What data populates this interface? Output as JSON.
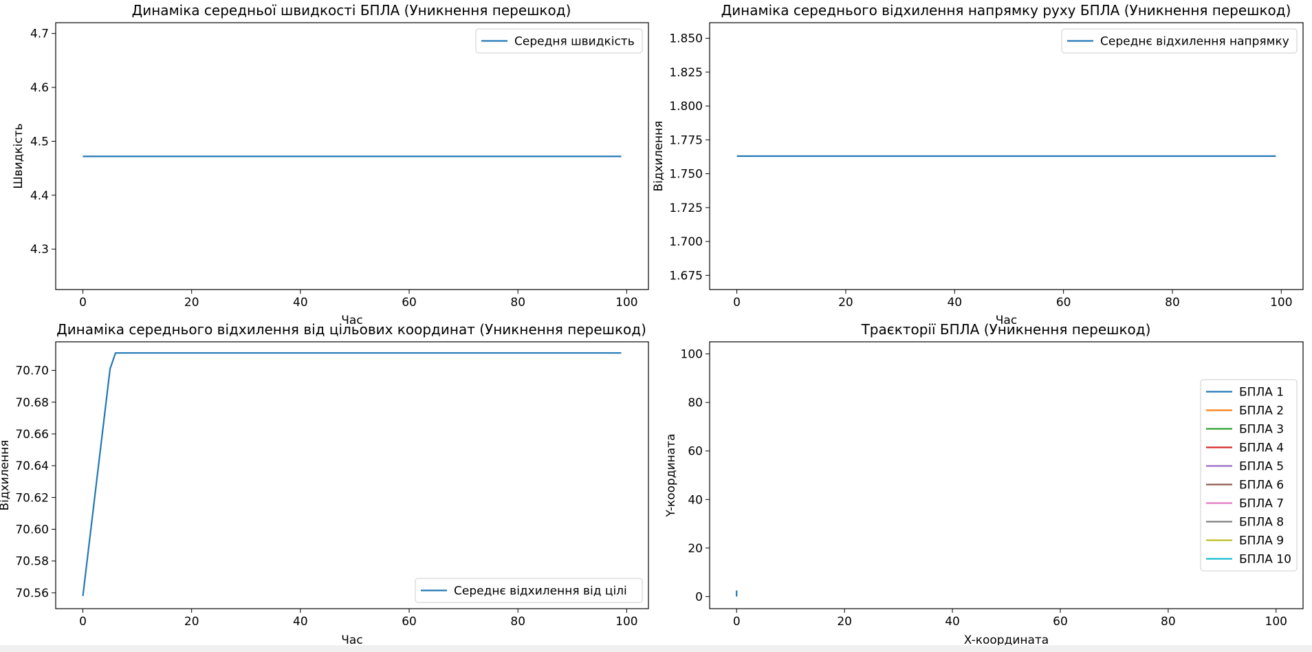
{
  "figure": {
    "background": "#ffffff"
  },
  "chart_data": [
    {
      "type": "line",
      "title": "Динаміка середньої швидкості БПЛА (Уникнення перешкод)",
      "xlabel": "Час",
      "ylabel": "Швидкість",
      "xlim": [
        -5,
        104
      ],
      "ylim": [
        4.225,
        4.72
      ],
      "xticks": [
        0,
        20,
        40,
        60,
        80,
        100
      ],
      "yticks": [
        4.3,
        4.4,
        4.5,
        4.6,
        4.7
      ],
      "ytick_labels": [
        "4.3",
        "4.4",
        "4.5",
        "4.6",
        "4.7"
      ],
      "legend_loc": "top-right",
      "series": [
        {
          "name": "Середня швидкість",
          "color": "#1f77b4",
          "x": [
            0,
            99
          ],
          "y": [
            4.472,
            4.472
          ]
        }
      ]
    },
    {
      "type": "line",
      "title": "Динаміка середнього відхилення напрямку руху БПЛА (Уникнення перешкод)",
      "xlabel": "Час",
      "ylabel": "Відхилення",
      "xlim": [
        -5,
        104
      ],
      "ylim": [
        1.6645,
        1.8615
      ],
      "xticks": [
        0,
        20,
        40,
        60,
        80,
        100
      ],
      "yticks": [
        1.675,
        1.7,
        1.725,
        1.75,
        1.775,
        1.8,
        1.825,
        1.85
      ],
      "ytick_labels": [
        "1.675",
        "1.700",
        "1.725",
        "1.750",
        "1.775",
        "1.800",
        "1.825",
        "1.850"
      ],
      "legend_loc": "top-right",
      "series": [
        {
          "name": "Середнє відхилення напрямку",
          "color": "#1f77b4",
          "x": [
            0,
            99
          ],
          "y": [
            1.763,
            1.763
          ]
        }
      ]
    },
    {
      "type": "line",
      "title": "Динаміка середнього відхилення від цільових координат (Уникнення перешкод)",
      "xlabel": "Час",
      "ylabel": "Відхилення",
      "xlim": [
        -5,
        104
      ],
      "ylim": [
        70.55,
        70.718
      ],
      "xticks": [
        0,
        20,
        40,
        60,
        80,
        100
      ],
      "yticks": [
        70.56,
        70.58,
        70.6,
        70.62,
        70.64,
        70.66,
        70.68,
        70.7
      ],
      "ytick_labels": [
        "70.56",
        "70.58",
        "70.60",
        "70.62",
        "70.64",
        "70.66",
        "70.68",
        "70.70"
      ],
      "legend_loc": "bottom-right",
      "series": [
        {
          "name": "Середнє відхилення від цілі",
          "color": "#1f77b4",
          "x": [
            0,
            5,
            6,
            99
          ],
          "y": [
            70.558,
            70.701,
            70.711,
            70.711
          ]
        }
      ]
    },
    {
      "type": "line",
      "title": "Траєкторії БПЛА (Уникнення перешкод)",
      "xlabel": "X-координата",
      "ylabel": "Y-координата",
      "xlim": [
        -5,
        105
      ],
      "ylim": [
        -5,
        105
      ],
      "xticks": [
        0,
        20,
        40,
        60,
        80,
        100
      ],
      "yticks": [
        0,
        20,
        40,
        60,
        80,
        100
      ],
      "legend_loc": "center-right",
      "series": [
        {
          "name": "БПЛА 1",
          "color": "#1f77b4",
          "x": [
            0,
            0
          ],
          "y": [
            0,
            2.5
          ]
        },
        {
          "name": "БПЛА 2",
          "color": "#ff7f0e",
          "x": [
            0,
            0
          ],
          "y": [
            0,
            0
          ]
        },
        {
          "name": "БПЛА 3",
          "color": "#2ca02c",
          "x": [
            0,
            0
          ],
          "y": [
            0,
            0
          ]
        },
        {
          "name": "БПЛА 4",
          "color": "#d62728",
          "x": [
            0,
            0
          ],
          "y": [
            0,
            0
          ]
        },
        {
          "name": "БПЛА 5",
          "color": "#9467bd",
          "x": [
            0,
            0
          ],
          "y": [
            0,
            0
          ]
        },
        {
          "name": "БПЛА 6",
          "color": "#8c564b",
          "x": [
            0,
            0
          ],
          "y": [
            0,
            0
          ]
        },
        {
          "name": "БПЛА 7",
          "color": "#e377c2",
          "x": [
            0,
            0
          ],
          "y": [
            0,
            0
          ]
        },
        {
          "name": "БПЛА 8",
          "color": "#7f7f7f",
          "x": [
            0,
            0
          ],
          "y": [
            0,
            0
          ]
        },
        {
          "name": "БПЛА 9",
          "color": "#bcbd22",
          "x": [
            0,
            0
          ],
          "y": [
            0,
            0
          ]
        },
        {
          "name": "БПЛА 10",
          "color": "#17becf",
          "x": [
            0,
            0
          ],
          "y": [
            0,
            0
          ]
        }
      ]
    }
  ]
}
